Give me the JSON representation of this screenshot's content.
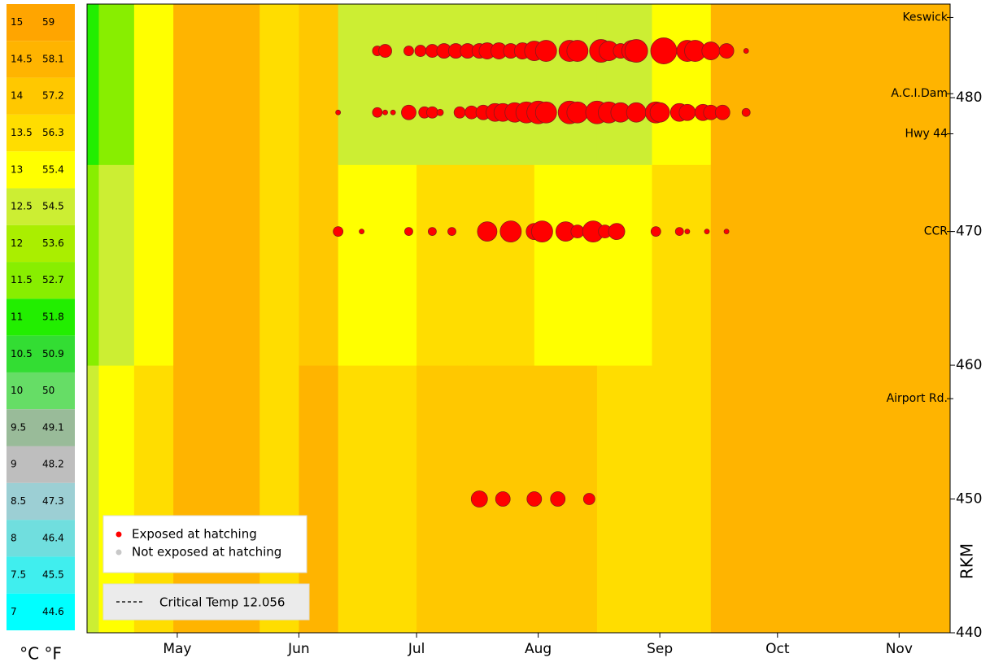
{
  "chart_data": {
    "type": "bubble-heatmap",
    "xlim": [
      98,
      318
    ],
    "xticks": [
      {
        "value": 121,
        "label": "May"
      },
      {
        "value": 152,
        "label": "Jun"
      },
      {
        "value": 182,
        "label": "Jul"
      },
      {
        "value": 213,
        "label": "Aug"
      },
      {
        "value": 244,
        "label": "Sep"
      },
      {
        "value": 274,
        "label": "Oct"
      },
      {
        "value": 305,
        "label": "Nov"
      }
    ],
    "ylim": [
      440,
      487
    ],
    "yticks": [
      440,
      450,
      460,
      470,
      480
    ],
    "y_label": "RKM",
    "locations": [
      {
        "label": "Keswick",
        "rkm": 486
      },
      {
        "label": "A.C.I.Dam",
        "rkm": 480.3
      },
      {
        "label": "Hwy 44",
        "rkm": 477.3
      },
      {
        "label": "CCR",
        "rkm": 470
      },
      {
        "label": "Airport Rd.",
        "rkm": 457.5
      }
    ],
    "color_scale_label": "°C °F",
    "color_scale": [
      {
        "c": 15,
        "f": 59,
        "color": "#ffa500"
      },
      {
        "c": 14.5,
        "f": 58.1,
        "color": "#ffb400"
      },
      {
        "c": 14,
        "f": 57.2,
        "color": "#ffc800"
      },
      {
        "c": 13.5,
        "f": 56.3,
        "color": "#ffdd00"
      },
      {
        "c": 13,
        "f": 55.4,
        "color": "#ffff00"
      },
      {
        "c": 12.5,
        "f": 54.5,
        "color": "#ccee33"
      },
      {
        "c": 12,
        "f": 53.6,
        "color": "#aaee00"
      },
      {
        "c": 11.5,
        "f": 52.7,
        "color": "#88ee00"
      },
      {
        "c": 11,
        "f": 51.8,
        "color": "#22ee00"
      },
      {
        "c": 10.5,
        "f": 50.9,
        "color": "#33dd33"
      },
      {
        "c": 10,
        "f": 50,
        "color": "#66dd66"
      },
      {
        "c": 9.5,
        "f": 49.1,
        "color": "#99bb99"
      },
      {
        "c": 9,
        "f": 48.2,
        "color": "#bebebe"
      },
      {
        "c": 8.5,
        "f": 47.3,
        "color": "#9ccfd4"
      },
      {
        "c": 8,
        "f": 46.4,
        "color": "#70dede"
      },
      {
        "c": 7.5,
        "f": 45.5,
        "color": "#40eeee"
      },
      {
        "c": 7,
        "f": 44.6,
        "color": "#00ffff"
      }
    ],
    "heatmap": {
      "bins": [
        98,
        101,
        110,
        120,
        142,
        152,
        162,
        172,
        182,
        195,
        212,
        228,
        242,
        257,
        318
      ],
      "rkm_bins": [
        440,
        460,
        475,
        487
      ],
      "temps": [
        [
          12.5,
          11.5,
          11
        ],
        [
          13,
          12.5,
          11.5
        ],
        [
          13.5,
          13,
          13
        ],
        [
          14.5,
          14.5,
          14.5
        ],
        [
          13.5,
          13.5,
          13.5
        ],
        [
          14.5,
          14,
          14
        ],
        [
          13.5,
          13,
          12.5
        ],
        [
          13.5,
          13,
          12.5
        ],
        [
          14,
          13.5,
          12.5
        ],
        [
          14,
          13.5,
          12.5
        ],
        [
          14,
          13,
          12.5
        ],
        [
          13.5,
          13,
          12.5
        ],
        [
          13.5,
          13.5,
          13
        ],
        [
          14.5,
          14.5,
          14.5
        ]
      ]
    },
    "series": [
      {
        "name": "Exposed at hatching",
        "color": "#ff0000",
        "x": [
          172,
          174,
          180,
          183,
          186,
          189,
          192,
          195,
          198,
          200,
          203,
          206,
          209,
          212,
          215,
          221,
          223,
          229,
          231,
          234,
          237,
          238,
          245,
          251,
          253,
          257,
          261,
          266,
          162,
          172,
          174,
          176,
          180,
          184,
          186,
          188,
          193,
          196,
          199,
          202,
          204,
          207,
          210,
          213,
          215,
          221,
          223,
          228,
          231,
          234,
          238,
          243,
          244,
          249,
          251,
          255,
          257,
          260,
          266,
          162,
          168,
          180,
          186,
          191,
          200,
          206,
          212,
          214,
          220,
          223,
          227,
          230,
          233,
          243,
          249,
          251,
          256,
          261,
          198,
          204,
          212,
          218,
          226
        ],
        "y": [
          483.5,
          483.5,
          483.5,
          483.5,
          483.5,
          483.5,
          483.5,
          483.5,
          483.5,
          483.5,
          483.5,
          483.5,
          483.5,
          483.5,
          483.5,
          483.5,
          483.5,
          483.5,
          483.5,
          483.5,
          483.5,
          483.5,
          483.5,
          483.5,
          483.5,
          483.5,
          483.5,
          483.5,
          478.9,
          478.9,
          478.9,
          478.9,
          478.9,
          478.9,
          478.9,
          478.9,
          478.9,
          478.9,
          478.9,
          478.9,
          478.9,
          478.9,
          478.9,
          478.9,
          478.9,
          478.9,
          478.9,
          478.9,
          478.9,
          478.9,
          478.9,
          478.9,
          478.9,
          478.9,
          478.9,
          478.9,
          478.9,
          478.9,
          478.9,
          470,
          470,
          470,
          470,
          470,
          470,
          470,
          470,
          470,
          470,
          470,
          470,
          470,
          470,
          470,
          470,
          470,
          470,
          470,
          450,
          450,
          450,
          450,
          450
        ],
        "sizes": [
          6,
          8,
          6,
          7,
          8,
          9,
          9,
          9,
          9,
          10,
          10,
          9,
          10,
          12,
          13,
          13,
          13,
          14,
          12,
          9,
          13,
          14,
          16,
          13,
          13,
          11,
          9,
          3,
          3,
          6,
          3,
          3,
          9,
          7,
          7,
          4,
          7,
          8,
          9,
          11,
          11,
          12,
          13,
          14,
          13,
          14,
          13,
          14,
          13,
          12,
          12,
          13,
          12,
          11,
          10,
          10,
          9,
          9,
          5,
          6,
          3,
          5,
          5,
          5,
          12,
          13,
          10,
          13,
          12,
          8,
          13,
          8,
          10,
          6,
          5,
          3,
          3,
          3,
          10,
          9,
          9,
          9,
          7
        ]
      },
      {
        "name": "Not exposed at hatching",
        "color": "#c8c8c8",
        "x": [],
        "y": [],
        "sizes": []
      }
    ],
    "critical_label": "Critical Temp 12.056"
  }
}
